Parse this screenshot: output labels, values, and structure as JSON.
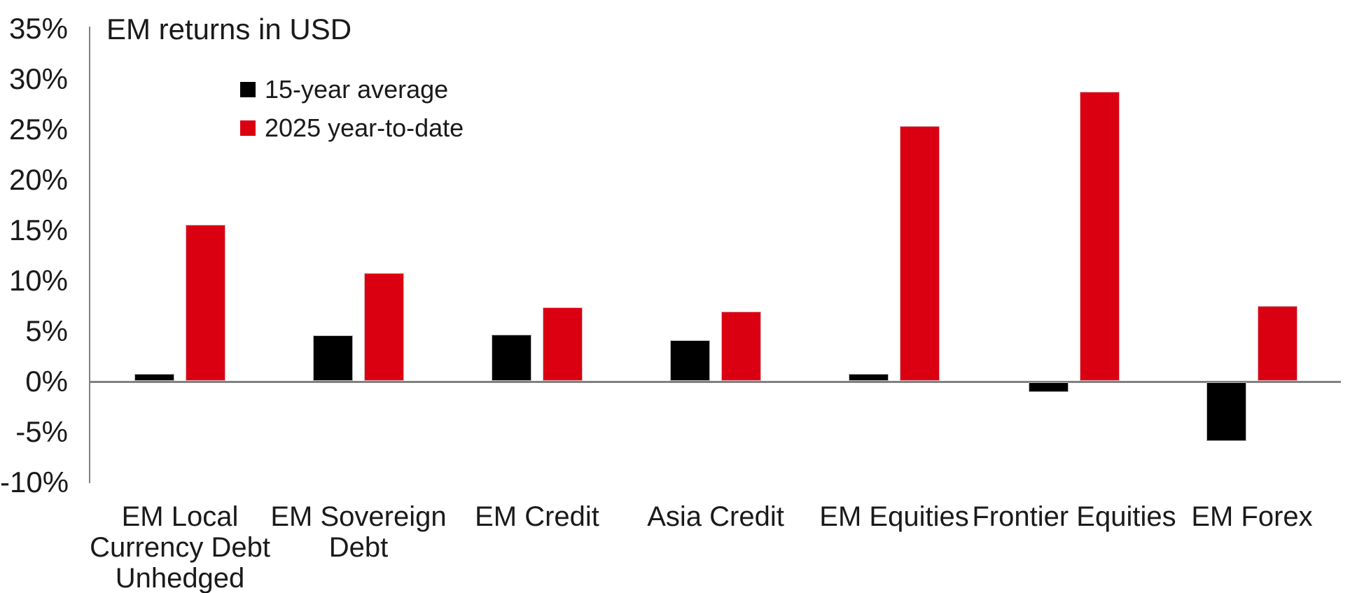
{
  "chart_data": {
    "type": "bar",
    "title": "EM returns in USD",
    "categories": [
      "EM Local\nCurrency Debt\nUnhedged",
      "EM Sovereign\nDebt",
      "EM Credit",
      "Asia Credit",
      "EM Equities",
      "Frontier Equities",
      "EM Forex"
    ],
    "series": [
      {
        "name": "15-year average",
        "color": "#000000",
        "values": [
          0.7,
          4.5,
          4.6,
          4.0,
          0.7,
          -1.1,
          -6.0
        ]
      },
      {
        "name": "2025 year-to-date",
        "color": "#DB0011",
        "values": [
          15.5,
          10.7,
          7.3,
          6.9,
          25.3,
          28.7,
          7.4
        ]
      }
    ],
    "y_ticks": [
      "35%",
      "30%",
      "25%",
      "20%",
      "15%",
      "10%",
      "5%",
      "0%",
      "-5%",
      "-10%"
    ],
    "ylim": [
      -10,
      35
    ],
    "y_step": 5,
    "unit": "%",
    "grid": false,
    "legend_position": "top-left-inside",
    "axis_color": "#808080",
    "text_color": "#1a1a1a"
  }
}
